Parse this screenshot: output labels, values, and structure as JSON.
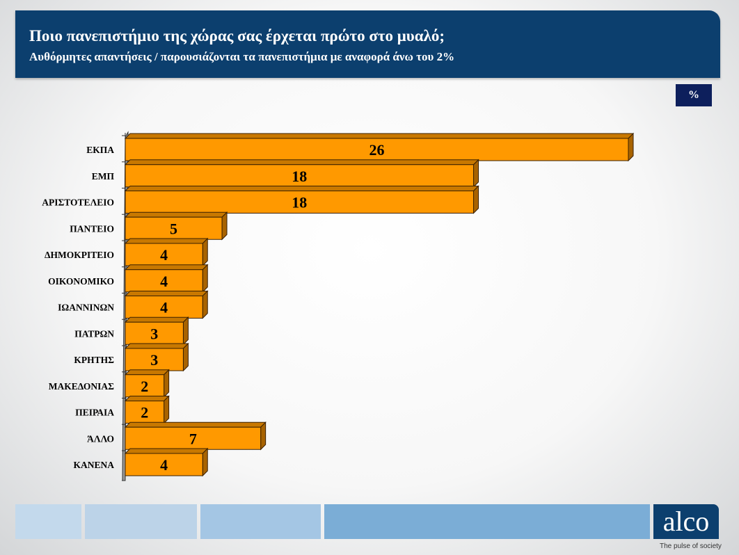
{
  "header": {
    "title": "Ποιο πανεπιστήμιο της χώρας σας έρχεται πρώτο στο μυαλό;",
    "subtitle": "Αυθόρμητες απαντήσεις  / παρουσιάζονται τα πανεπιστήμια με αναφορά άνω του 2%"
  },
  "unit_label": "%",
  "brand": {
    "logo": "alco",
    "tagline": "The pulse of society",
    "color": "#0c3f6e"
  },
  "chart_data": {
    "type": "bar",
    "orientation": "horizontal",
    "style": "3d",
    "categories": [
      "ΕΚΠΑ",
      "ΕΜΠ",
      "ΑΡΙΣΤΟΤΕΛΕΙΟ",
      "ΠΑΝΤΕΙΟ",
      "ΔΗΜΟΚΡΙΤΕΙΟ",
      "ΟΙΚΟΝΟΜΙΚΟ",
      "ΙΩΑΝΝΙΝΩΝ",
      "ΠΑΤΡΩΝ",
      "ΚΡΗΤΗΣ",
      "ΜΑΚΕΔΟΝΙΑΣ",
      "ΠΕΙΡΑΙΑ",
      "ΆΛΛΟ",
      "ΚΑΝΕΝΑ"
    ],
    "values": [
      26,
      18,
      18,
      5,
      4,
      4,
      4,
      3,
      3,
      2,
      2,
      7,
      4
    ],
    "labels": [
      "26",
      "18",
      "18",
      "5",
      "4",
      "4",
      "4",
      "3",
      "3",
      "2",
      "2",
      "7",
      "4"
    ],
    "bar_color": "#ff9900",
    "grid": false,
    "xlim": [
      0,
      26
    ]
  }
}
